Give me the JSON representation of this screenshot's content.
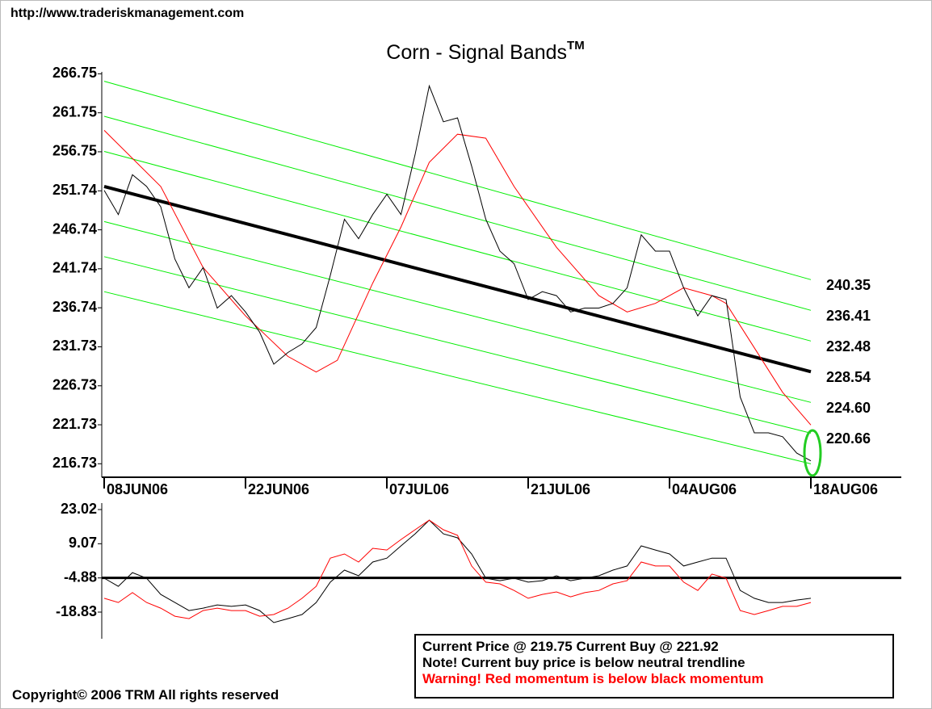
{
  "header": {
    "url": "http://www.traderiskmanagement.com"
  },
  "chart_data": [
    {
      "type": "line",
      "title": "Corn - Signal Bands",
      "title_mark": "TM",
      "xlim": [
        -0.17,
        56.4
      ],
      "ylim": [
        215,
        267
      ],
      "xticks": [
        {
          "value": 0,
          "label": "08JUN06"
        },
        {
          "value": 10,
          "label": "22JUN06"
        },
        {
          "value": 20,
          "label": "07JUL06"
        },
        {
          "value": 30,
          "label": "21JUL06"
        },
        {
          "value": 40,
          "label": "04AUG06"
        },
        {
          "value": 50,
          "label": "18AUG06"
        }
      ],
      "yticks": [
        266.75,
        261.75,
        256.75,
        251.74,
        246.74,
        241.74,
        236.74,
        231.73,
        226.73,
        221.73,
        216.73
      ],
      "series": [
        {
          "color": "#00ee00",
          "width": 1,
          "x": [
            0,
            50
          ],
          "values": [
            265.8,
            240.35
          ]
        },
        {
          "color": "#00ee00",
          "width": 1,
          "x": [
            0,
            50
          ],
          "values": [
            261.3,
            236.41
          ]
        },
        {
          "color": "#00ee00",
          "width": 1,
          "x": [
            0,
            50
          ],
          "values": [
            256.8,
            232.48
          ]
        },
        {
          "color": "#000000",
          "width": 4,
          "x": [
            0,
            50
          ],
          "values": [
            252.3,
            228.54
          ]
        },
        {
          "color": "#00ee00",
          "width": 1,
          "x": [
            0,
            50
          ],
          "values": [
            247.8,
            224.6
          ]
        },
        {
          "color": "#00ee00",
          "width": 1,
          "x": [
            0,
            50
          ],
          "values": [
            243.3,
            220.66
          ]
        },
        {
          "color": "#00ee00",
          "width": 1,
          "x": [
            0,
            50
          ],
          "values": [
            238.8,
            216.72
          ]
        },
        {
          "color": "#ff0000",
          "width": 1,
          "x": [
            0,
            4,
            7,
            10,
            13,
            15,
            16.5,
            19,
            21,
            23,
            25,
            27,
            29,
            32,
            35,
            37,
            39,
            41,
            43,
            44,
            46,
            48,
            50
          ],
          "values": [
            259.5,
            252.3,
            241.9,
            235.7,
            230.5,
            228.5,
            230.0,
            239.9,
            247.1,
            255.4,
            259.0,
            258.5,
            252.3,
            244.5,
            238.3,
            236.2,
            237.3,
            239.3,
            238.3,
            237.3,
            231.6,
            225.9,
            221.7
          ]
        },
        {
          "color": "#000000",
          "width": 1,
          "values": [
            251.8,
            248.7,
            253.8,
            252.3,
            249.7,
            243.0,
            239.3,
            241.9,
            236.7,
            238.3,
            236.2,
            233.6,
            229.5,
            231.0,
            232.1,
            234.2,
            240.9,
            248.1,
            245.6,
            248.7,
            251.3,
            248.7,
            256.4,
            265.2,
            260.6,
            261.1,
            254.9,
            248.1,
            244.0,
            242.4,
            237.8,
            238.8,
            238.3,
            236.2,
            236.7,
            236.7,
            237.3,
            239.3,
            246.1,
            244.0,
            244.0,
            239.3,
            235.7,
            238.3,
            237.8,
            225.3,
            220.7,
            220.7,
            220.2,
            218.1,
            217.1
          ]
        }
      ],
      "end_labels": {
        "series": [
          0,
          1,
          2,
          3,
          4,
          5
        ],
        "values": [
          240.35,
          236.41,
          232.48,
          228.54,
          224.6,
          220.66
        ],
        "value_labels": [
          "240.35",
          "236.41",
          "232.48",
          "228.54",
          "224.60",
          "220.66"
        ]
      }
    },
    {
      "type": "line",
      "xlim": [
        -0.17,
        56.4
      ],
      "ylim": [
        -29.7,
        25.66
      ],
      "yticks": [
        23.02,
        9.07,
        -4.88,
        -18.83
      ],
      "hline": -4.88,
      "series": [
        {
          "color": "#000000",
          "width": 1,
          "values": [
            -5.0,
            -8.3,
            -2.7,
            -5.0,
            -11.6,
            -14.9,
            -18.2,
            -17.2,
            -15.9,
            -16.5,
            -15.9,
            -18.2,
            -23.1,
            -21.5,
            -19.8,
            -14.9,
            -6.6,
            -1.7,
            -4.0,
            1.6,
            3.2,
            8.2,
            13.1,
            18.7,
            13.1,
            11.5,
            4.9,
            -5.0,
            -6.0,
            -5.0,
            -6.6,
            -6.0,
            -4.0,
            -6.0,
            -5.0,
            -4.0,
            -1.7,
            0.0,
            8.2,
            6.5,
            4.9,
            0.0,
            1.6,
            3.2,
            3.2,
            -10.0,
            -13.2,
            -14.9,
            -14.9,
            -13.9,
            -13.2
          ]
        },
        {
          "color": "#ff0000",
          "width": 1,
          "values": [
            -13.2,
            -14.9,
            -10.9,
            -14.9,
            -17.2,
            -20.5,
            -21.5,
            -18.2,
            -17.2,
            -18.2,
            -18.2,
            -20.5,
            -19.8,
            -17.2,
            -13.2,
            -8.3,
            3.2,
            4.9,
            1.6,
            7.2,
            6.5,
            10.8,
            14.8,
            18.7,
            14.8,
            12.5,
            0.0,
            -6.6,
            -7.3,
            -10.0,
            -13.2,
            -11.6,
            -10.6,
            -12.6,
            -10.9,
            -10.0,
            -7.3,
            -6.0,
            1.6,
            0.0,
            0.0,
            -6.6,
            -10.0,
            -3.3,
            -5.0,
            -18.2,
            -19.8,
            -18.2,
            -16.5,
            -16.5,
            -14.9
          ]
        }
      ]
    }
  ],
  "info_box": {
    "lines": [
      "Current Price @ 219.75  Current Buy @ 221.92",
      "Note! Current buy price is below neutral trendline",
      "Warning! Red momentum is below black momentum"
    ]
  },
  "footer": {
    "copyright": "Copyright© 2006 TRM All rights reserved"
  }
}
